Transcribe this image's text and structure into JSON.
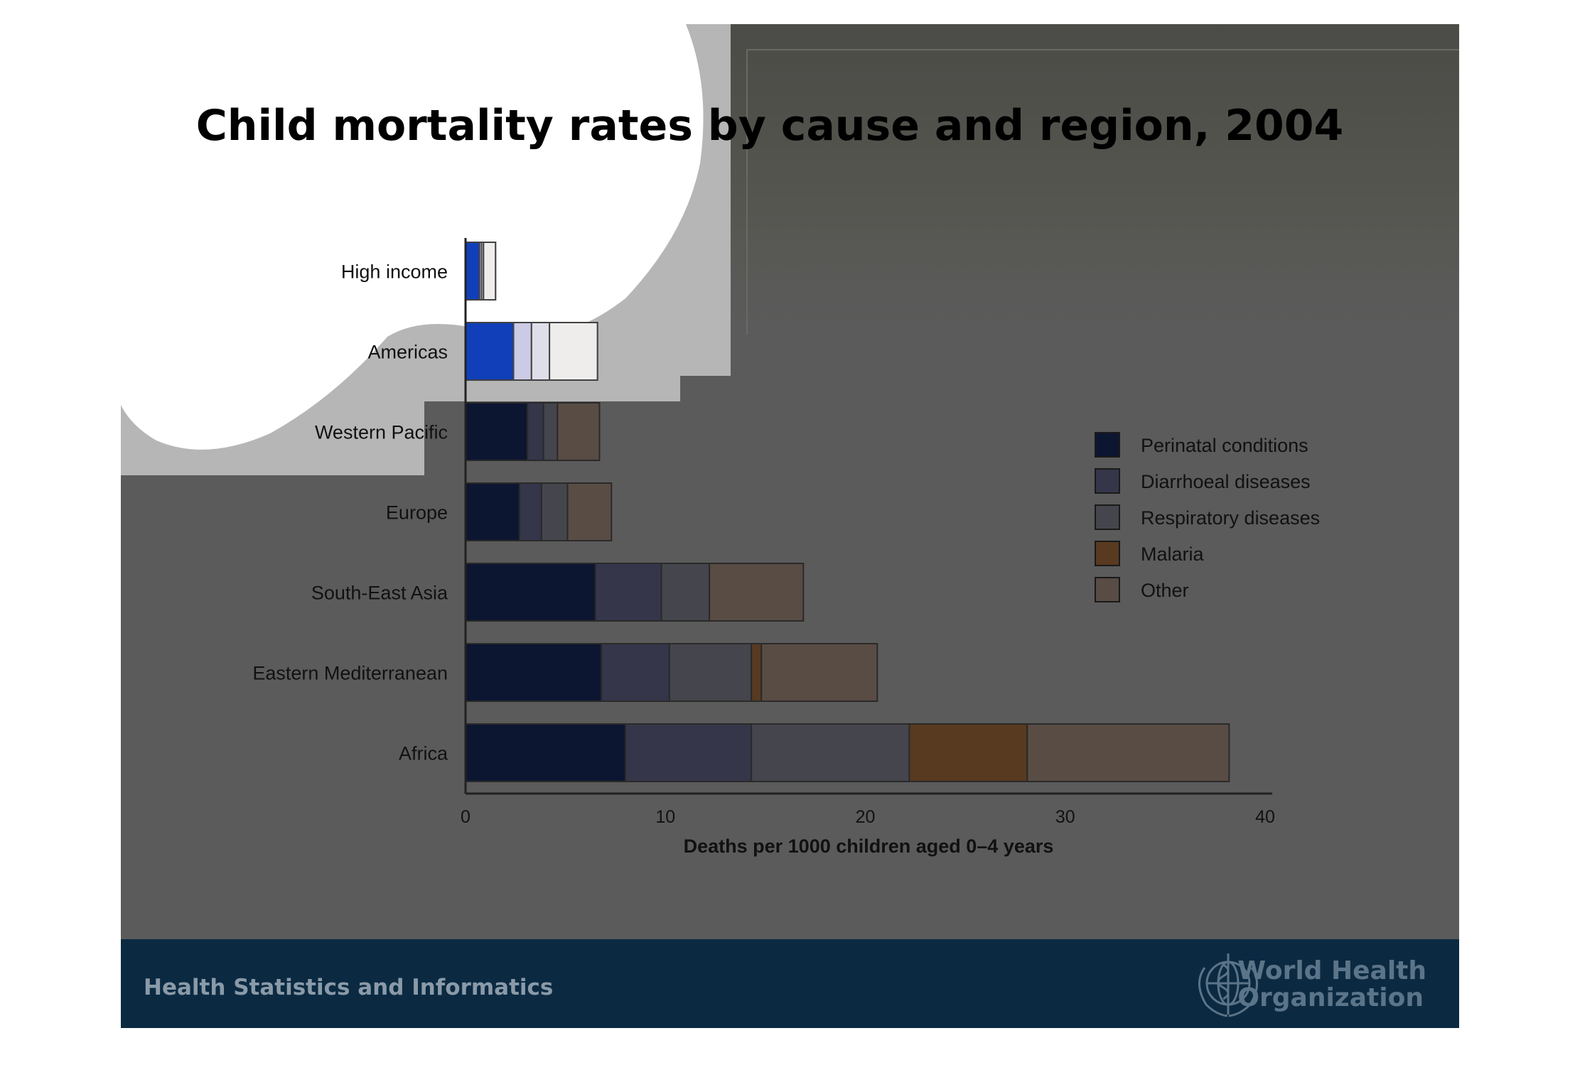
{
  "title": "Child mortality rates by cause and region, 2004",
  "footer": {
    "left_text": "Health Statistics and Informatics",
    "org_line1": "World Health",
    "org_line2": "Organization",
    "logo_icon": "who-emblem-icon"
  },
  "colors": {
    "slide_bg": "#5b5b5b",
    "footer_bg": "#0b2a42",
    "perinatal": "#0c1631",
    "diarrhoeal": "#35364a",
    "respiratory": "#45454d",
    "malaria": "#583a20",
    "other": "#594c44"
  },
  "chart_data": {
    "type": "bar",
    "orientation": "horizontal",
    "stacked": true,
    "categories": [
      "High income",
      "Americas",
      "Western Pacific",
      "Europe",
      "South-East Asia",
      "Eastern Mediterranean",
      "Africa"
    ],
    "series": [
      {
        "name": "Perinatal conditions",
        "values": [
          0.7,
          2.4,
          3.1,
          2.7,
          6.5,
          6.8,
          8.0
        ]
      },
      {
        "name": "Diarrhoeal diseases",
        "values": [
          0.1,
          0.9,
          0.8,
          1.1,
          3.3,
          3.4,
          6.3
        ]
      },
      {
        "name": "Respiratory diseases",
        "values": [
          0.1,
          0.9,
          0.7,
          1.3,
          2.4,
          4.1,
          7.9
        ]
      },
      {
        "name": "Malaria",
        "values": [
          0,
          0,
          0,
          0,
          0,
          0.5,
          5.9
        ]
      },
      {
        "name": "Other",
        "values": [
          0.6,
          2.4,
          2.1,
          2.2,
          4.7,
          5.8,
          10.1
        ]
      }
    ],
    "xlabel": "Deaths per 1000 children aged 0–4 years",
    "xlim": [
      0,
      40
    ],
    "xticks": [
      "0",
      "10",
      "20",
      "30",
      "40"
    ],
    "legend_position": "right"
  }
}
